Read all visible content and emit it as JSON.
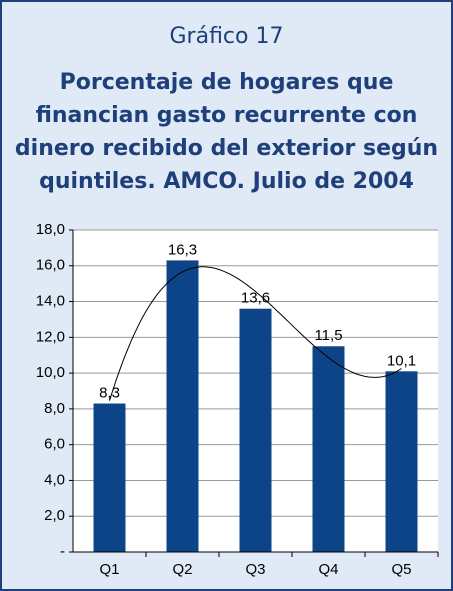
{
  "chart_data": {
    "type": "bar",
    "title": "Gráfico 17",
    "subtitle": [
      "Porcentaje de hogares que",
      "financian gasto recurrente con",
      "dinero recibido del exterior según",
      "quintiles. AMCO. Julio de 2004"
    ],
    "categories": [
      "Q1",
      "Q2",
      "Q3",
      "Q4",
      "Q5"
    ],
    "values": [
      8.3,
      16.3,
      13.6,
      11.5,
      10.1
    ],
    "value_labels": [
      "8,3",
      "16,3",
      "13,6",
      "11,5",
      "10,1"
    ],
    "color": "#0d4488",
    "trendline": true,
    "ylim": [
      0,
      18
    ],
    "yticks": [
      {
        "value": 0,
        "label": "-"
      },
      {
        "value": 2,
        "label": "2,0"
      },
      {
        "value": 4,
        "label": "4,0"
      },
      {
        "value": 6,
        "label": "6,0"
      },
      {
        "value": 8,
        "label": "8,0"
      },
      {
        "value": 10,
        "label": "10,0"
      },
      {
        "value": 12,
        "label": "12,0"
      },
      {
        "value": 14,
        "label": "14,0"
      },
      {
        "value": 16,
        "label": "16,0"
      },
      {
        "value": 18,
        "label": "18,0"
      }
    ],
    "grid": true
  }
}
